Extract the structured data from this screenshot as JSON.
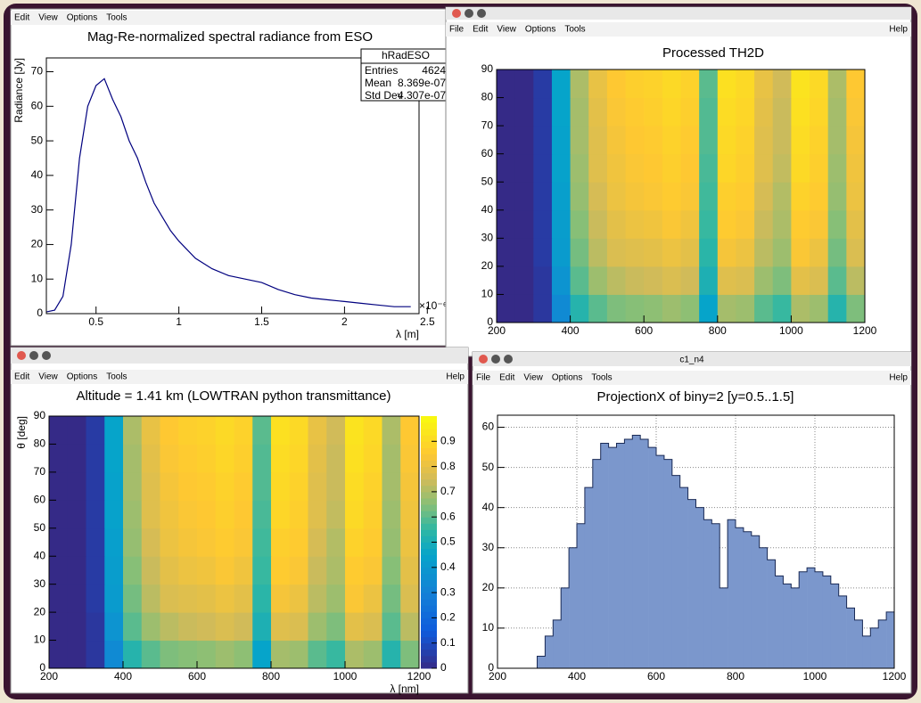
{
  "windows": [
    {
      "menu": [
        "Edit",
        "View",
        "Options",
        "Tools"
      ]
    },
    {
      "menu": [
        "File",
        "Edit",
        "View",
        "Options",
        "Tools"
      ],
      "help": "Help"
    },
    {
      "menu": [
        "Edit",
        "View",
        "Options",
        "Tools"
      ],
      "help": "Help"
    },
    {
      "title": "c1_n4",
      "menu": [
        "File",
        "Edit",
        "View",
        "Options",
        "Tools"
      ],
      "help": "Help"
    }
  ],
  "stats": {
    "name": "hRadESO",
    "rows": [
      [
        "Entries",
        "4624"
      ],
      [
        "Mean",
        "8.369e-07"
      ],
      [
        "Std Dev",
        "4.307e-07"
      ]
    ]
  },
  "chart_data": [
    {
      "type": "line",
      "title": "Mag-Re-normalized spectral radiance from ESO",
      "color": "#00007f",
      "x": [
        0.2,
        0.25,
        0.3,
        0.35,
        0.4,
        0.45,
        0.5,
        0.55,
        0.6,
        0.65,
        0.7,
        0.75,
        0.8,
        0.85,
        0.9,
        0.95,
        1.0,
        1.1,
        1.2,
        1.3,
        1.4,
        1.5,
        1.6,
        1.7,
        1.8,
        1.9,
        2.0,
        2.1,
        2.2,
        2.3,
        2.4
      ],
      "values": [
        0.5,
        1,
        5,
        20,
        45,
        60,
        66,
        68,
        62,
        57,
        50,
        45,
        38,
        32,
        28,
        24,
        21,
        16,
        13,
        11,
        10,
        9,
        7,
        5.5,
        4.5,
        4,
        3.5,
        3,
        2.5,
        2,
        2
      ],
      "xlim": [
        0.2,
        2.45
      ],
      "ylim": [
        0,
        74
      ],
      "xticks": [
        0.5,
        1,
        1.5,
        2,
        2.5
      ],
      "yticks": [
        0,
        10,
        20,
        30,
        40,
        50,
        60,
        70
      ],
      "x_label": "λ [m]",
      "y_label": "Radiance [Jy]",
      "x_exponent": "×10⁻⁶"
    },
    {
      "type": "heatmap",
      "title": "Processed TH2D",
      "x_bins": [
        200,
        250,
        300,
        350,
        400,
        450,
        500,
        550,
        600,
        650,
        700,
        750,
        800,
        850,
        900,
        950,
        1000,
        1050,
        1100,
        1150,
        1200
      ],
      "y_bins": [
        0,
        10,
        20,
        30,
        40,
        50,
        60,
        70,
        80,
        90
      ],
      "values": [
        [
          0,
          0,
          0.04,
          0.34,
          0.53,
          0.6,
          0.64,
          0.65,
          0.66,
          0.68,
          0.66,
          0.45,
          0.69,
          0.68,
          0.6,
          0.56,
          0.7,
          0.68,
          0.53,
          0.64
        ],
        [
          0,
          0,
          0.04,
          0.38,
          0.6,
          0.68,
          0.72,
          0.74,
          0.75,
          0.77,
          0.75,
          0.51,
          0.78,
          0.77,
          0.68,
          0.64,
          0.79,
          0.77,
          0.6,
          0.72
        ],
        [
          0,
          0,
          0.05,
          0.41,
          0.63,
          0.72,
          0.77,
          0.78,
          0.79,
          0.81,
          0.79,
          0.54,
          0.83,
          0.81,
          0.72,
          0.68,
          0.84,
          0.81,
          0.63,
          0.77
        ],
        [
          0,
          0,
          0.05,
          0.42,
          0.65,
          0.74,
          0.79,
          0.81,
          0.82,
          0.84,
          0.82,
          0.56,
          0.86,
          0.84,
          0.74,
          0.7,
          0.86,
          0.84,
          0.65,
          0.79
        ],
        [
          0,
          0,
          0.05,
          0.43,
          0.67,
          0.76,
          0.81,
          0.83,
          0.84,
          0.86,
          0.84,
          0.57,
          0.87,
          0.86,
          0.76,
          0.71,
          0.88,
          0.86,
          0.67,
          0.81
        ],
        [
          0,
          0,
          0.05,
          0.44,
          0.68,
          0.78,
          0.82,
          0.84,
          0.85,
          0.87,
          0.85,
          0.58,
          0.89,
          0.87,
          0.78,
          0.73,
          0.9,
          0.87,
          0.68,
          0.82
        ],
        [
          0,
          0,
          0.05,
          0.44,
          0.69,
          0.78,
          0.83,
          0.85,
          0.86,
          0.88,
          0.86,
          0.59,
          0.9,
          0.88,
          0.78,
          0.74,
          0.91,
          0.88,
          0.69,
          0.83
        ],
        [
          0,
          0,
          0.05,
          0.45,
          0.69,
          0.79,
          0.84,
          0.86,
          0.87,
          0.89,
          0.87,
          0.59,
          0.91,
          0.89,
          0.79,
          0.74,
          0.92,
          0.89,
          0.69,
          0.84
        ],
        [
          0,
          0,
          0.05,
          0.45,
          0.7,
          0.8,
          0.85,
          0.87,
          0.88,
          0.9,
          0.88,
          0.6,
          0.92,
          0.9,
          0.8,
          0.75,
          0.93,
          0.9,
          0.7,
          0.85
        ]
      ],
      "zlim": [
        0,
        1
      ],
      "xlim": [
        200,
        1200
      ],
      "ylim": [
        0,
        90
      ],
      "xticks": [
        200,
        400,
        600,
        800,
        1000,
        1200
      ],
      "yticks": [
        0,
        10,
        20,
        30,
        40,
        50,
        60,
        70,
        80,
        90
      ]
    },
    {
      "type": "heatmap",
      "title": "Altitude = 1.41 km (LOWTRAN python transmittance)",
      "x_bins": [
        200,
        250,
        300,
        350,
        400,
        450,
        500,
        550,
        600,
        650,
        700,
        750,
        800,
        850,
        900,
        950,
        1000,
        1050,
        1100,
        1150,
        1200
      ],
      "y_bins": [
        0,
        10,
        20,
        30,
        40,
        50,
        60,
        70,
        80,
        90
      ],
      "values": [
        [
          0,
          0,
          0.04,
          0.34,
          0.53,
          0.6,
          0.64,
          0.65,
          0.66,
          0.68,
          0.66,
          0.45,
          0.69,
          0.68,
          0.6,
          0.56,
          0.7,
          0.68,
          0.53,
          0.64
        ],
        [
          0,
          0,
          0.04,
          0.38,
          0.6,
          0.68,
          0.72,
          0.74,
          0.75,
          0.77,
          0.75,
          0.51,
          0.78,
          0.77,
          0.68,
          0.64,
          0.79,
          0.77,
          0.6,
          0.72
        ],
        [
          0,
          0,
          0.05,
          0.41,
          0.63,
          0.72,
          0.77,
          0.78,
          0.79,
          0.81,
          0.79,
          0.54,
          0.83,
          0.81,
          0.72,
          0.68,
          0.84,
          0.81,
          0.63,
          0.77
        ],
        [
          0,
          0,
          0.05,
          0.42,
          0.65,
          0.74,
          0.79,
          0.81,
          0.82,
          0.84,
          0.82,
          0.56,
          0.86,
          0.84,
          0.74,
          0.7,
          0.86,
          0.84,
          0.65,
          0.79
        ],
        [
          0,
          0,
          0.05,
          0.43,
          0.67,
          0.76,
          0.81,
          0.83,
          0.84,
          0.86,
          0.84,
          0.57,
          0.87,
          0.86,
          0.76,
          0.71,
          0.88,
          0.86,
          0.67,
          0.81
        ],
        [
          0,
          0,
          0.05,
          0.44,
          0.68,
          0.78,
          0.82,
          0.84,
          0.85,
          0.87,
          0.85,
          0.58,
          0.89,
          0.87,
          0.78,
          0.73,
          0.9,
          0.87,
          0.68,
          0.82
        ],
        [
          0,
          0,
          0.05,
          0.44,
          0.69,
          0.78,
          0.83,
          0.85,
          0.86,
          0.88,
          0.86,
          0.59,
          0.9,
          0.88,
          0.78,
          0.74,
          0.91,
          0.88,
          0.69,
          0.83
        ],
        [
          0,
          0,
          0.05,
          0.45,
          0.69,
          0.79,
          0.84,
          0.86,
          0.87,
          0.89,
          0.87,
          0.59,
          0.91,
          0.89,
          0.79,
          0.74,
          0.92,
          0.89,
          0.69,
          0.84
        ],
        [
          0,
          0,
          0.05,
          0.45,
          0.7,
          0.8,
          0.85,
          0.87,
          0.88,
          0.9,
          0.88,
          0.6,
          0.92,
          0.9,
          0.8,
          0.75,
          0.93,
          0.9,
          0.7,
          0.85
        ]
      ],
      "zlim": [
        0,
        1
      ],
      "zticks": [
        0,
        0.1,
        0.2,
        0.3,
        0.4,
        0.5,
        0.6,
        0.7,
        0.8,
        0.9
      ],
      "xlim": [
        200,
        1200
      ],
      "ylim": [
        0,
        90
      ],
      "xticks": [
        200,
        400,
        600,
        800,
        1000,
        1200
      ],
      "yticks": [
        0,
        10,
        20,
        30,
        40,
        50,
        60,
        70,
        80,
        90
      ],
      "x_label": "λ [nm]",
      "y_label": "θ [deg]"
    },
    {
      "type": "histogram",
      "title": "ProjectionX of biny=2 [y=0.5..1.5]",
      "color": "#7b97cc",
      "grid": true,
      "bins": [
        200,
        220,
        240,
        260,
        280,
        300,
        320,
        340,
        360,
        380,
        400,
        420,
        440,
        460,
        480,
        500,
        520,
        540,
        560,
        580,
        600,
        620,
        640,
        660,
        680,
        700,
        720,
        740,
        760,
        780,
        800,
        820,
        840,
        860,
        880,
        900,
        920,
        940,
        960,
        980,
        1000,
        1020,
        1040,
        1060,
        1080,
        1100,
        1120,
        1140,
        1160,
        1180,
        1200
      ],
      "values": [
        0,
        0,
        0,
        0,
        0,
        3,
        8,
        12,
        20,
        30,
        36,
        45,
        52,
        56,
        55,
        56,
        57,
        58,
        57,
        55,
        53,
        52,
        48,
        45,
        42,
        40,
        37,
        36,
        20,
        37,
        35,
        34,
        33,
        30,
        27,
        23,
        21,
        20,
        24,
        25,
        24,
        23,
        21,
        18,
        15,
        12,
        8,
        10,
        12,
        14
      ],
      "xlim": [
        200,
        1200
      ],
      "ylim": [
        0,
        63
      ],
      "xticks": [
        200,
        400,
        600,
        800,
        1000,
        1200
      ],
      "yticks": [
        0,
        10,
        20,
        30,
        40,
        50,
        60
      ]
    }
  ]
}
